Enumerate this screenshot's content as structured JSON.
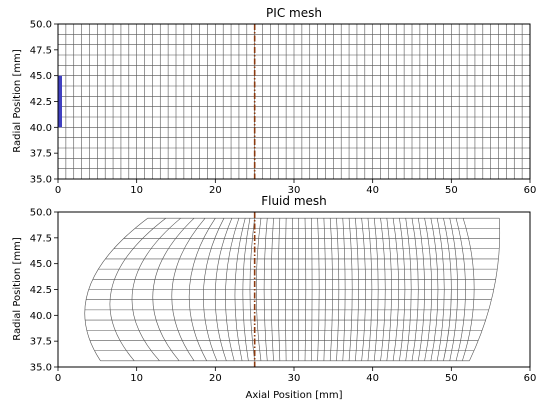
{
  "chart_data": [
    {
      "type": "mesh",
      "title": "PIC mesh",
      "xlabel": "",
      "ylabel": "Radial Position [mm]",
      "xlim": [
        0,
        60
      ],
      "ylim": [
        35,
        50
      ],
      "xticks": [
        "0",
        "10",
        "20",
        "30",
        "40",
        "50",
        "60"
      ],
      "yticks": [
        "35.0",
        "37.5",
        "40.0",
        "42.5",
        "45.0",
        "47.5",
        "50.0"
      ],
      "grid_x_step": 1,
      "grid_y_step": 1,
      "interface_x": 25,
      "source_region": {
        "x": 0,
        "y_from": 40,
        "y_to": 45
      },
      "colors": {
        "grid": "#555555",
        "interface": "#8b3a0f",
        "source": "#4040c0"
      }
    },
    {
      "type": "mesh",
      "title": "Fluid mesh",
      "xlabel": "Axial Position [mm]",
      "ylabel": "Radial Position [mm]",
      "xlim": [
        0,
        60
      ],
      "ylim": [
        35,
        50
      ],
      "xticks": [
        "0",
        "10",
        "20",
        "30",
        "40",
        "50",
        "60"
      ],
      "yticks": [
        "35.0",
        "37.5",
        "40.0",
        "42.5",
        "45.0",
        "47.5",
        "50.0"
      ],
      "r_min": 35.6,
      "r_max": 49.4,
      "radial_lines": 15,
      "bottom_x": [
        5.4,
        9.7,
        12.9,
        15.4,
        17.3,
        18.9,
        20.2,
        21.4,
        22.4,
        23.4,
        24.2,
        25.0,
        25.8,
        26.6,
        27.4,
        28.2,
        29.0,
        29.8,
        30.6,
        31.4,
        32.2,
        33.0,
        33.8,
        34.6,
        35.4,
        36.2,
        37.0,
        37.8,
        38.6,
        39.4,
        40.2,
        41.0,
        41.8,
        42.6,
        43.4,
        44.2,
        45.0,
        45.8,
        46.6,
        47.4,
        48.2,
        49.0,
        49.8,
        50.6,
        51.4,
        52.3
      ],
      "top_x": [
        11.4,
        13.7,
        15.6,
        17.3,
        18.7,
        20.0,
        21.1,
        22.1,
        23.0,
        23.8,
        24.4,
        25.0,
        25.8,
        26.6,
        27.4,
        28.2,
        29.0,
        29.8,
        30.6,
        31.4,
        32.2,
        33.0,
        33.8,
        34.6,
        35.4,
        36.2,
        37.0,
        37.8,
        38.6,
        39.4,
        40.2,
        41.0,
        41.8,
        42.6,
        43.4,
        44.2,
        45.0,
        45.8,
        46.6,
        47.4,
        48.2,
        49.0,
        49.8,
        50.6,
        51.5,
        56.1
      ],
      "mid_x": [
        3.9,
        6.8,
        9.5,
        12.1,
        14.5,
        16.7,
        18.5,
        20.0,
        21.3,
        22.5,
        23.5,
        24.4,
        25.2,
        26.2,
        27.1,
        28.0,
        28.9,
        29.8,
        30.6,
        31.5,
        32.3,
        33.2,
        34.0,
        34.9,
        35.7,
        36.5,
        37.4,
        38.2,
        39.1,
        39.9,
        40.7,
        41.6,
        42.4,
        43.3,
        44.1,
        44.9,
        45.8,
        46.6,
        47.5,
        48.3,
        49.1,
        50.0,
        50.8,
        51.8,
        52.9,
        55.4
      ],
      "interface_x": 25,
      "colors": {
        "grid": "#555555",
        "interface": "#8b3a0f"
      }
    }
  ]
}
